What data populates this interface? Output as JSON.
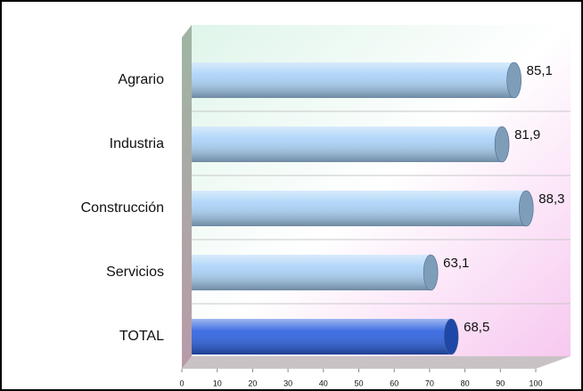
{
  "chart_data": {
    "type": "bar",
    "orientation": "horizontal",
    "categories": [
      "Agrario",
      "Industria",
      "Construcción",
      "Servicios",
      "TOTAL"
    ],
    "values": [
      85.1,
      81.9,
      88.3,
      63.1,
      68.5
    ],
    "value_labels": [
      "85,1",
      "81,9",
      "88,3",
      "63,1",
      "68,5"
    ],
    "colors": [
      "#a9d2f7",
      "#a9d2f7",
      "#a9d2f7",
      "#a9d2f7",
      "#2a5fe0"
    ],
    "xlim": [
      0,
      100
    ],
    "xticks": [
      0,
      10,
      20,
      30,
      40,
      50,
      60,
      70,
      80,
      90,
      100
    ],
    "grid": true
  }
}
